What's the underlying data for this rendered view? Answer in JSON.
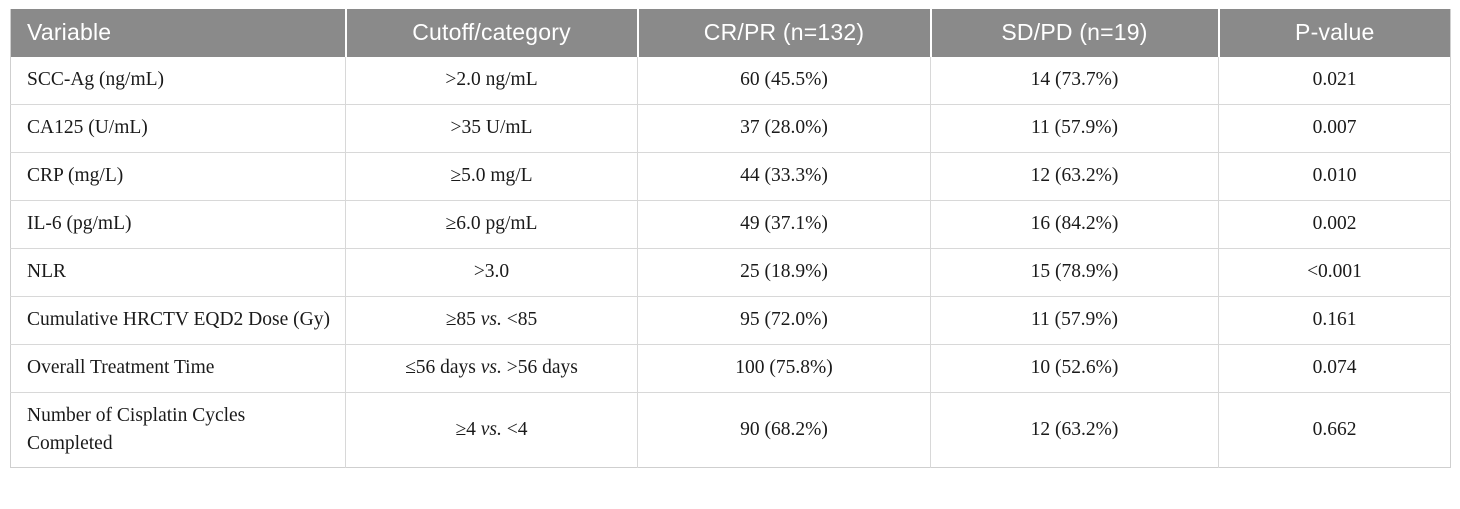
{
  "colors": {
    "header_bg": "#8a8a8a",
    "header_text": "#ffffff",
    "grid_line": "#d8d8d8",
    "outer_border": "#cfcfcf",
    "body_text": "#1a1a1a"
  },
  "table": {
    "columns": [
      {
        "label": "Variable",
        "align": "left"
      },
      {
        "label": "Cutoff/category",
        "align": "center"
      },
      {
        "label": "CR/PR (n=132)",
        "align": "center"
      },
      {
        "label": "SD/PD (n=19)",
        "align": "center"
      },
      {
        "label": "P-value",
        "align": "center"
      }
    ],
    "rows": [
      {
        "variable": "SCC-Ag (ng/mL)",
        "cutoff": ">2.0 ng/mL",
        "crpr": "60 (45.5%)",
        "sdpd": "14 (73.7%)",
        "pvalue": "0.021"
      },
      {
        "variable": "CA125 (U/mL)",
        "cutoff": ">35 U/mL",
        "crpr": "37 (28.0%)",
        "sdpd": "11 (57.9%)",
        "pvalue": "0.007"
      },
      {
        "variable": "CRP (mg/L)",
        "cutoff": "≥5.0 mg/L",
        "crpr": "44 (33.3%)",
        "sdpd": "12 (63.2%)",
        "pvalue": "0.010"
      },
      {
        "variable": "IL-6 (pg/mL)",
        "cutoff": "≥6.0 pg/mL",
        "crpr": "49 (37.1%)",
        "sdpd": "16 (84.2%)",
        "pvalue": "0.002"
      },
      {
        "variable": "NLR",
        "cutoff": ">3.0",
        "crpr": "25 (18.9%)",
        "sdpd": "15 (78.9%)",
        "pvalue": "<0.001"
      },
      {
        "variable": "Cumulative HRCTV EQD2 Dose (Gy)",
        "cutoff": "≥85 vs. <85",
        "crpr": "95 (72.0%)",
        "sdpd": "11 (57.9%)",
        "pvalue": "0.161"
      },
      {
        "variable": "Overall Treatment Time",
        "cutoff": "≤56 days vs. >56 days",
        "crpr": "100 (75.8%)",
        "sdpd": "10 (52.6%)",
        "pvalue": "0.074"
      },
      {
        "variable": "Number of Cisplatin Cycles Completed",
        "cutoff": "≥4 vs. <4",
        "crpr": "90 (68.2%)",
        "sdpd": "12 (63.2%)",
        "pvalue": "0.662"
      }
    ]
  }
}
